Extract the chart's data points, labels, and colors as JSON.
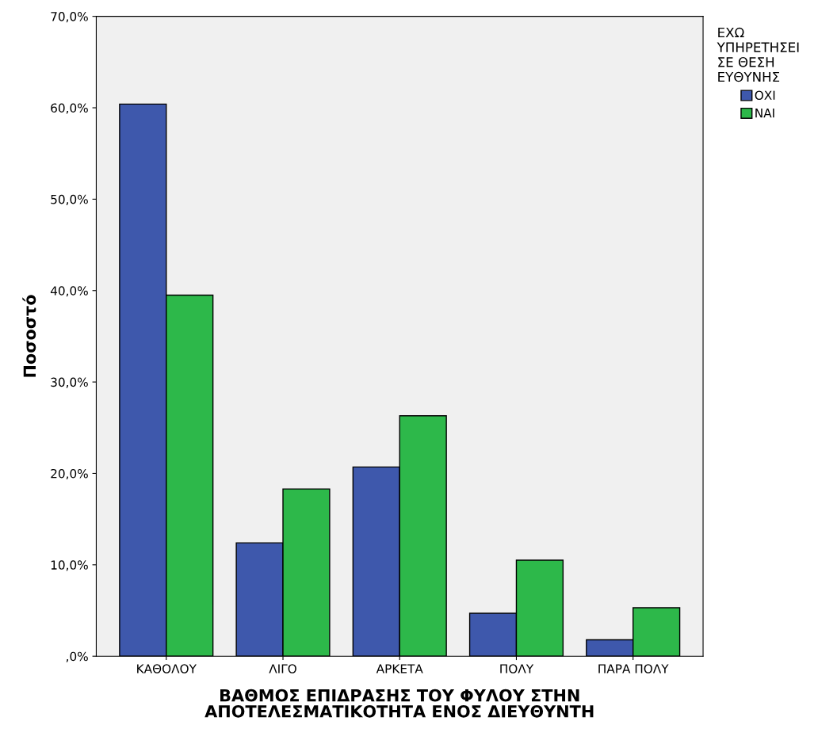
{
  "chart_data": {
    "type": "bar",
    "xlabel": "ΒΑΘΜΟΣ ΕΠΙΔΡΑΣΗΣ ΤΟΥ ΦΥΛΟΥ ΣΤΗΝ\nΑΠΟΤΕΛΕΣΜΑΤΙΚΟΤΗΤΑ ΕΝΟΣ ΔΙΕΥΘΥΝΤΗ",
    "ylabel": "Ποσοστό",
    "legend_title": "ΕΧΩ\nΥΠΗΡΕΤΗΣΕΙ\nΣΕ ΘΕΣΗ\nΕΥΘΥΝΗΣ",
    "categories": [
      "ΚΑΘΟΛΟΥ",
      "ΛΙΓΟ",
      "ΑΡΚΕΤΑ",
      "ΠΟΛΥ",
      "ΠΑΡΑ ΠΟΛΥ"
    ],
    "series": [
      {
        "name": "ΟΧΙ",
        "color": "#3e58ac",
        "values": [
          60.4,
          12.4,
          20.7,
          4.7,
          1.8
        ]
      },
      {
        "name": "ΝΑΙ",
        "color": "#2db84a",
        "values": [
          39.5,
          18.3,
          26.3,
          10.5,
          5.3
        ]
      }
    ],
    "ylim": [
      0,
      70
    ],
    "yticks": [
      {
        "value": 0,
        "label": ",0%"
      },
      {
        "value": 10,
        "label": "10,0%"
      },
      {
        "value": 20,
        "label": "20,0%"
      },
      {
        "value": 30,
        "label": "30,0%"
      },
      {
        "value": 40,
        "label": "40,0%"
      },
      {
        "value": 50,
        "label": "50,0%"
      },
      {
        "value": 60,
        "label": "60,0%"
      },
      {
        "value": 70,
        "label": "70,0%"
      }
    ],
    "grid": false,
    "legend": "top right"
  }
}
